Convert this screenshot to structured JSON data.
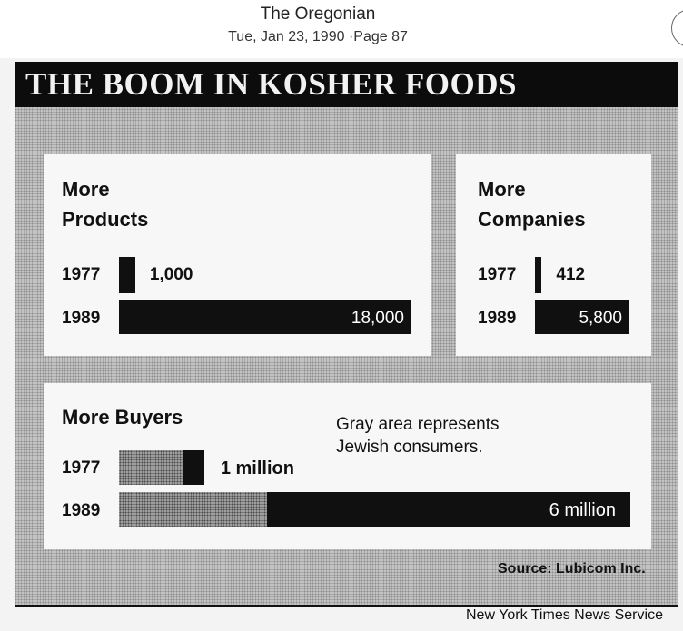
{
  "viewer": {
    "publication": "The Oregonian",
    "date_page": "Tue, Jan 23, 1990 ·Page 87"
  },
  "clipping": {
    "headline": "THE BOOM IN KOSHER FOODS",
    "note": [
      "Gray area represents",
      "Jewish consumers."
    ],
    "source": "Source: Lubicom Inc.",
    "credit": "New York Times News Service"
  },
  "chart_data": [
    {
      "type": "bar",
      "orientation": "horizontal",
      "title": [
        "More",
        "Products"
      ],
      "categories": [
        "1977",
        "1989"
      ],
      "values": [
        1000,
        18000
      ],
      "labels": [
        "1,000",
        "18,000"
      ]
    },
    {
      "type": "bar",
      "orientation": "horizontal",
      "title": [
        "More",
        "Companies"
      ],
      "categories": [
        "1977",
        "1989"
      ],
      "values": [
        412,
        5800
      ],
      "labels": [
        "412",
        "5,800"
      ]
    },
    {
      "type": "bar",
      "orientation": "horizontal",
      "stacked": true,
      "title": [
        "More Buyers"
      ],
      "categories": [
        "1977",
        "1989"
      ],
      "values": [
        1,
        6
      ],
      "jewish_share": [
        0.75,
        0.29
      ],
      "labels": [
        "1 million",
        "6 million"
      ],
      "colors": {
        "jewish": "#a8a8a8",
        "other": "#101010"
      }
    }
  ]
}
